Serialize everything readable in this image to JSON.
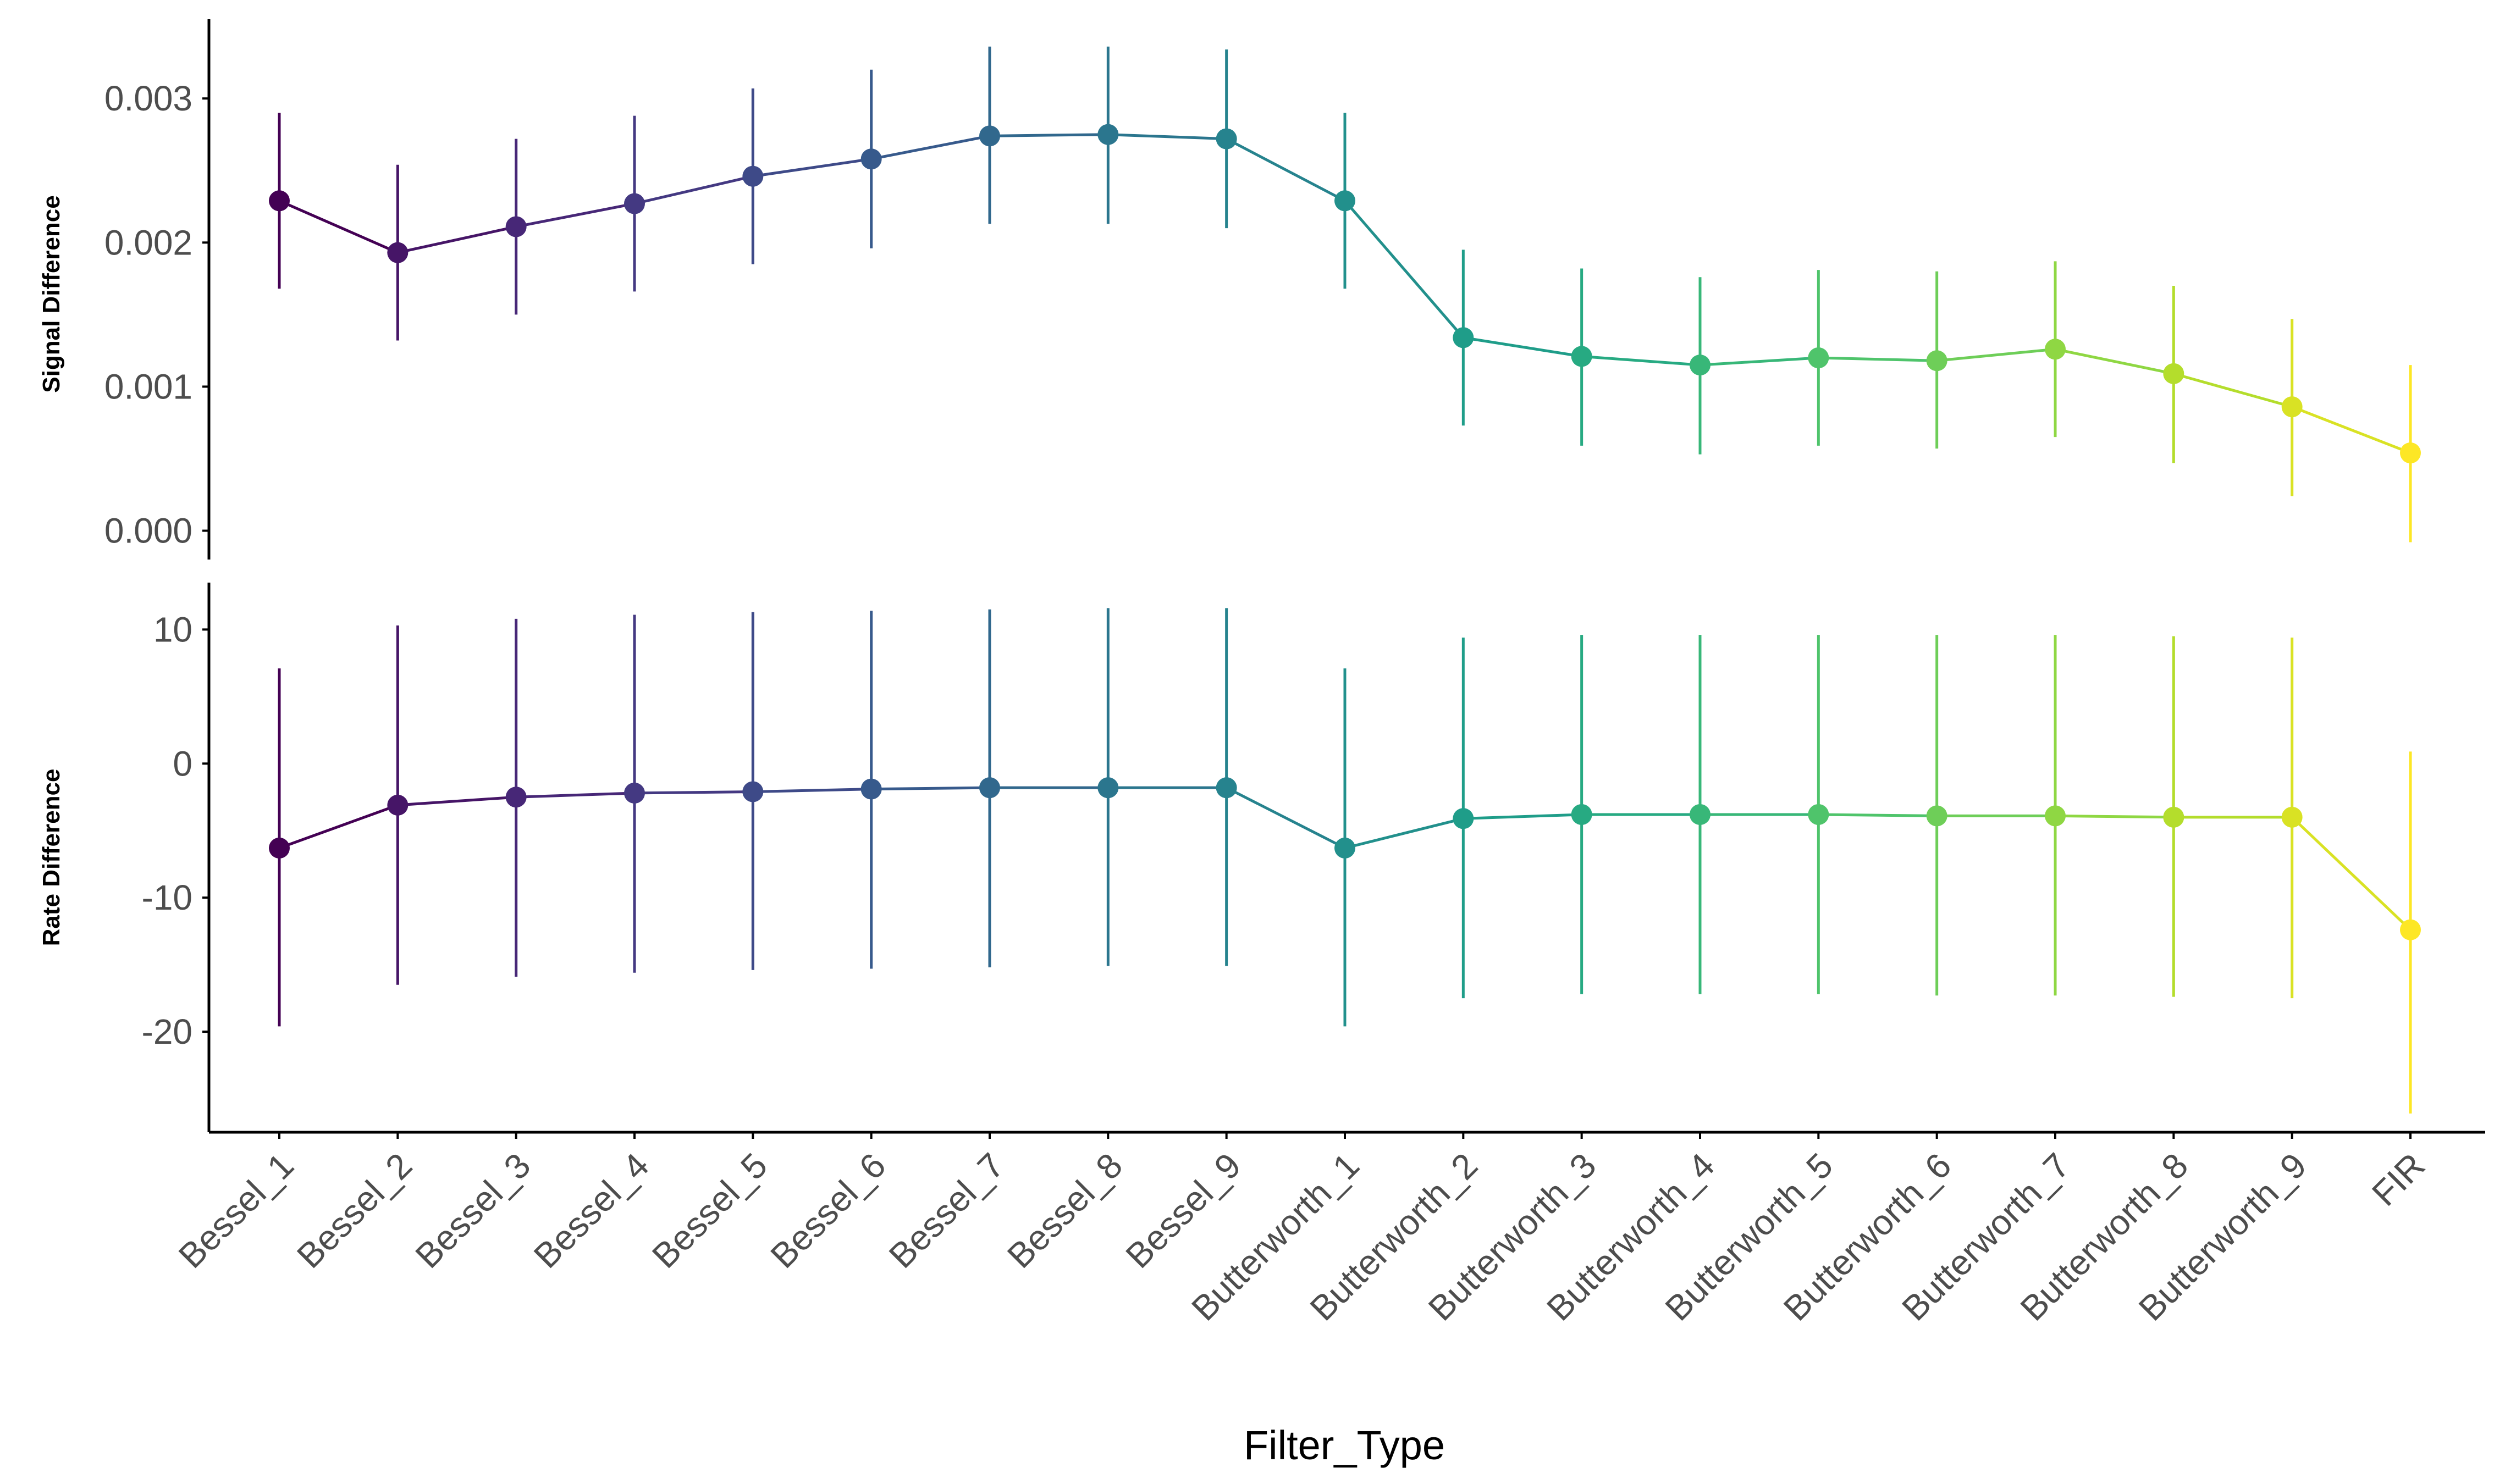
{
  "chart_data": {
    "type": "line",
    "xlabel": "Filter_Type",
    "categories": [
      "Bessel_1",
      "Bessel_2",
      "Bessel_3",
      "Bessel_4",
      "Bessel_5",
      "Bessel_6",
      "Bessel_7",
      "Bessel_8",
      "Bessel_9",
      "Butterworth_1",
      "Butterworth_2",
      "Butterworth_3",
      "Butterworth_4",
      "Butterworth_5",
      "Butterworth_6",
      "Butterworth_7",
      "Butterworth_8",
      "Butterworth_9",
      "FIR"
    ],
    "colors": [
      "#440154",
      "#482173",
      "#433E85",
      "#38598C",
      "#2D708E",
      "#25858E",
      "#1E9B8A",
      "#2BB07F",
      "#51C56A",
      "#85D54A",
      "#C2DF23",
      "#FDE725"
    ],
    "grid": false,
    "legend": "none",
    "panels": [
      {
        "ylabel": "Signal Difference",
        "ylim": [
          -0.0002,
          0.00355
        ],
        "yticks": [
          0,
          0.001,
          0.002,
          0.003
        ],
        "ytick_labels": [
          "0.000",
          "0.001",
          "0.002",
          "0.003"
        ],
        "values": [
          0.00229,
          0.00193,
          0.00211,
          0.00227,
          0.00246,
          0.00258,
          0.00274,
          0.00275,
          0.00272,
          0.00229,
          0.00134,
          0.00121,
          0.00115,
          0.0012,
          0.00118,
          0.00126,
          0.00109,
          0.00086,
          0.00054
        ],
        "lower": [
          0.00168,
          0.00132,
          0.0015,
          0.00166,
          0.00185,
          0.00196,
          0.00213,
          0.00213,
          0.0021,
          0.00168,
          0.00073,
          0.00059,
          0.00053,
          0.00059,
          0.00057,
          0.00065,
          0.00047,
          0.00024,
          -8e-05
        ],
        "upper": [
          0.0029,
          0.00254,
          0.00272,
          0.00288,
          0.00307,
          0.0032,
          0.00336,
          0.00336,
          0.00334,
          0.0029,
          0.00195,
          0.00182,
          0.00176,
          0.00181,
          0.0018,
          0.00187,
          0.0017,
          0.00147,
          0.00115
        ]
      },
      {
        "ylabel": "Rate Difference",
        "ylim": [
          -27.5,
          13.5
        ],
        "yticks": [
          10,
          0,
          -10,
          -20
        ],
        "ytick_labels": [
          "10",
          "0",
          "-10",
          "-20"
        ],
        "values": [
          -6.3,
          -3.1,
          -2.5,
          -2.2,
          -2.1,
          -1.9,
          -1.8,
          -1.8,
          -1.8,
          -6.3,
          -4.1,
          -3.8,
          -3.8,
          -3.8,
          -3.9,
          -3.9,
          -4.0,
          -4.0,
          -12.4
        ],
        "lower": [
          -19.6,
          -16.5,
          -15.9,
          -15.6,
          -15.4,
          -15.3,
          -15.2,
          -15.1,
          -15.1,
          -19.6,
          -17.5,
          -17.2,
          -17.2,
          -17.2,
          -17.3,
          -17.3,
          -17.4,
          -17.5,
          -26.1
        ],
        "upper": [
          7.1,
          10.3,
          10.8,
          11.1,
          11.3,
          11.4,
          11.5,
          11.6,
          11.6,
          7.1,
          9.4,
          9.6,
          9.6,
          9.6,
          9.6,
          9.6,
          9.5,
          9.4,
          0.9
        ]
      }
    ]
  }
}
